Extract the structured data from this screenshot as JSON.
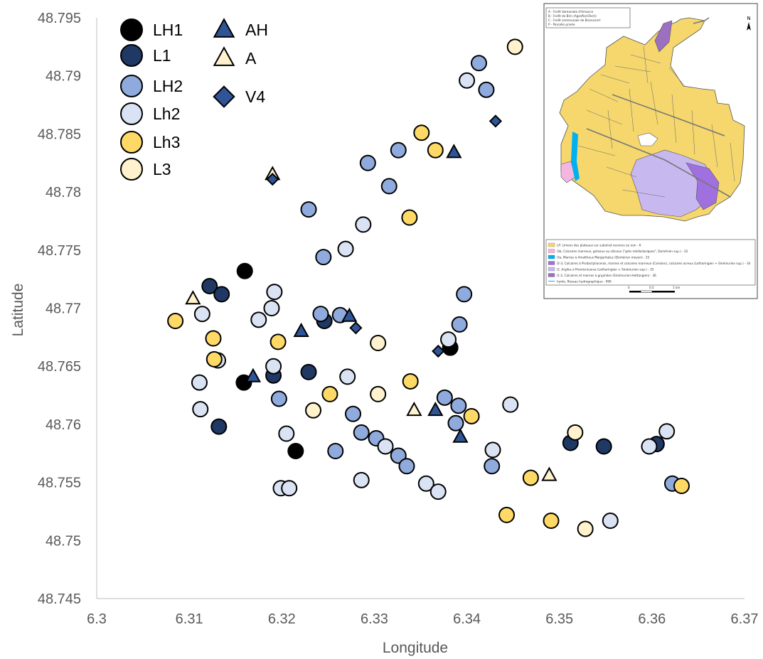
{
  "chart_data": {
    "type": "scatter",
    "xlabel": "Longitude",
    "ylabel": "Latitude",
    "xlim": [
      6.3,
      6.37
    ],
    "ylim": [
      48.745,
      48.795
    ],
    "xticks": [
      "6.3",
      "6.31",
      "6.32",
      "6.33",
      "6.34",
      "6.35",
      "6.36",
      "6.37"
    ],
    "yticks": [
      "48.745",
      "48.75",
      "48.755",
      "48.76",
      "48.765",
      "48.77",
      "48.775",
      "48.78",
      "48.785",
      "48.79",
      "48.795"
    ],
    "grid": false,
    "legend_position": "top-left",
    "series": [
      {
        "name": "LH1",
        "marker": "circle",
        "color": "#000000",
        "points": [
          [
            6.316,
            48.7732
          ],
          [
            6.3159,
            48.7636
          ],
          [
            6.3215,
            48.7577
          ],
          [
            6.3382,
            48.7666
          ]
        ]
      },
      {
        "name": "L1",
        "marker": "circle",
        "color": "#1f3864",
        "points": [
          [
            6.3122,
            48.7719
          ],
          [
            6.3135,
            48.7712
          ],
          [
            6.3191,
            48.7642
          ],
          [
            6.3229,
            48.7645
          ],
          [
            6.3246,
            48.7689
          ],
          [
            6.3132,
            48.7598
          ],
          [
            6.3512,
            48.7584
          ],
          [
            6.3548,
            48.7581
          ],
          [
            6.3605,
            48.7583
          ]
        ]
      },
      {
        "name": "LH2",
        "marker": "circle",
        "color": "#8faadc",
        "points": [
          [
            6.3413,
            48.7911
          ],
          [
            6.3421,
            48.7888
          ],
          [
            6.3293,
            48.7825
          ],
          [
            6.3326,
            48.7836
          ],
          [
            6.3316,
            48.7805
          ],
          [
            6.3229,
            48.7785
          ],
          [
            6.3245,
            48.7744
          ],
          [
            6.3397,
            48.7712
          ],
          [
            6.3242,
            48.7695
          ],
          [
            6.3263,
            48.7694
          ],
          [
            6.3392,
            48.7686
          ],
          [
            6.3197,
            48.7622
          ],
          [
            6.3376,
            48.7623
          ],
          [
            6.3391,
            48.7616
          ],
          [
            6.3277,
            48.7609
          ],
          [
            6.3388,
            48.7601
          ],
          [
            6.3286,
            48.7593
          ],
          [
            6.3302,
            48.7588
          ],
          [
            6.3326,
            48.7573
          ],
          [
            6.3258,
            48.7577
          ],
          [
            6.3335,
            48.7564
          ],
          [
            6.3427,
            48.7564
          ],
          [
            6.3622,
            48.7549
          ]
        ]
      },
      {
        "name": "Lh2",
        "marker": "circle",
        "color": "#dae3f3",
        "points": [
          [
            6.34,
            48.7896
          ],
          [
            6.3288,
            48.7772
          ],
          [
            6.3269,
            48.7751
          ],
          [
            6.3175,
            48.769
          ],
          [
            6.3192,
            48.7714
          ],
          [
            6.3189,
            48.77
          ],
          [
            6.3114,
            48.7695
          ],
          [
            6.3131,
            48.7655
          ],
          [
            6.3191,
            48.765
          ],
          [
            6.3271,
            48.7641
          ],
          [
            6.3111,
            48.7636
          ],
          [
            6.338,
            48.7673
          ],
          [
            6.3112,
            48.7613
          ],
          [
            6.3205,
            48.7592
          ],
          [
            6.3447,
            48.7617
          ],
          [
            6.3428,
            48.7578
          ],
          [
            6.3312,
            48.7581
          ],
          [
            6.3286,
            48.7552
          ],
          [
            6.3356,
            48.7549
          ],
          [
            6.3369,
            48.7542
          ],
          [
            6.3199,
            48.7545
          ],
          [
            6.3208,
            48.7545
          ],
          [
            6.3597,
            48.7581
          ],
          [
            6.3616,
            48.7594
          ],
          [
            6.3555,
            48.7517
          ]
        ]
      },
      {
        "name": "Lh3",
        "marker": "circle",
        "color": "#ffd966",
        "points": [
          [
            6.3351,
            48.7851
          ],
          [
            6.3366,
            48.7836
          ],
          [
            6.3338,
            48.7778
          ],
          [
            6.3085,
            48.7689
          ],
          [
            6.3196,
            48.7671
          ],
          [
            6.3126,
            48.7674
          ],
          [
            6.3127,
            48.7656
          ],
          [
            6.3339,
            48.7637
          ],
          [
            6.3252,
            48.7626
          ],
          [
            6.3405,
            48.7607
          ],
          [
            6.3469,
            48.7554
          ],
          [
            6.3632,
            48.7547
          ],
          [
            6.3443,
            48.7522
          ],
          [
            6.3491,
            48.7517
          ]
        ]
      },
      {
        "name": "L3",
        "marker": "circle",
        "color": "#fff2cc",
        "points": [
          [
            6.3452,
            48.7925
          ],
          [
            6.3304,
            48.767
          ],
          [
            6.3304,
            48.7626
          ],
          [
            6.3234,
            48.7612
          ],
          [
            6.3517,
            48.7593
          ],
          [
            6.3528,
            48.751
          ]
        ]
      },
      {
        "name": "AH",
        "marker": "triangle",
        "color": "#2f5597",
        "points": [
          [
            6.3386,
            48.7834
          ],
          [
            6.3221,
            48.768
          ],
          [
            6.3169,
            48.7641
          ],
          [
            6.3273,
            48.7693
          ],
          [
            6.3366,
            48.7612
          ],
          [
            6.3393,
            48.7589
          ]
        ]
      },
      {
        "name": "A",
        "marker": "triangle",
        "color": "#fff2cc",
        "points": [
          [
            6.319,
            48.7815
          ],
          [
            6.3104,
            48.7708
          ],
          [
            6.3343,
            48.7612
          ],
          [
            6.3489,
            48.7556
          ]
        ]
      },
      {
        "name": "V4",
        "marker": "diamond",
        "color": "#2f5597",
        "points": [
          [
            6.3431,
            48.7861
          ],
          [
            6.319,
            48.7811
          ],
          [
            6.328,
            48.7683
          ],
          [
            6.3369,
            48.7663
          ]
        ]
      }
    ],
    "legend": [
      {
        "name": "LH1"
      },
      {
        "name": "L1"
      },
      {
        "name": "LH2"
      },
      {
        "name": "Lh2"
      },
      {
        "name": "Lh3"
      },
      {
        "name": "L3"
      },
      {
        "name": "AH"
      },
      {
        "name": "A"
      },
      {
        "name": "V4"
      }
    ]
  },
  "inset_map": {
    "header_lines": [
      "A - Forêt domaniale d'Amance",
      "B - Forêt de Brin (AgroParisTech)",
      "C - Forêt communale de Brionconrt",
      "P - Parcelle privée"
    ],
    "north_label": "N",
    "legend_items": [
      {
        "text": "LP: Limons des plateaux sur substrat reconnu ou non - 6",
        "color": "#f5d76e"
      },
      {
        "text": "l3b, Calcaires marneux, gréseux ou siliceux (\"grès médioliasiques\", Domérien sup.) - 32",
        "color": "#f4b6e0"
      },
      {
        "text": "l3a, Marnes à Amaltheus Margaritatus (Domérien moyen) - 33",
        "color": "#00b0f0"
      },
      {
        "text": "l2-3, Calcaires à Prodactylioceras, marnes et calcaires marneux (Carixien), calcaires ocreux (Lotharingien + Sinémurien sup.) - 34",
        "color": "#a070e0"
      },
      {
        "text": "l2, Argiles à Promicroceras (Lotharingien + Sinémurien sup.) - 35",
        "color": "#c8b8f0"
      },
      {
        "text": "l1-2, Calcaires et marnes à gryphées (Sinémurien-Hettangien) - 36",
        "color": "#9c6fc0"
      },
      {
        "text": "hydro, Réseau hydrographique - 999",
        "color": ""
      }
    ],
    "scale_labels": [
      "0",
      "0.5",
      "1 km"
    ]
  }
}
